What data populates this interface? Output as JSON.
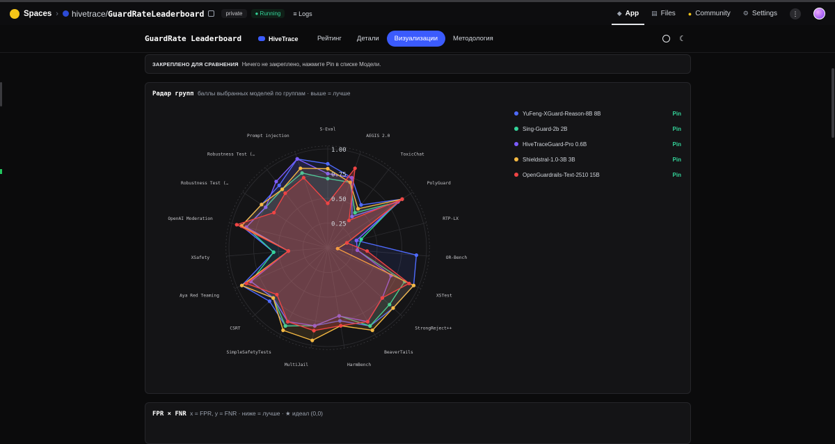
{
  "topbar": {
    "spaces_label": "Spaces",
    "org": "hivetrace",
    "slash": "/",
    "repo": "GuardRateLeaderboard",
    "visibility": "private",
    "status": "● Running",
    "logs": "≡ Logs",
    "nav": [
      {
        "label": "App",
        "icon": "app-icon",
        "active": true
      },
      {
        "label": "Files",
        "icon": "files-icon",
        "active": false
      },
      {
        "label": "Community",
        "icon": "community-icon",
        "active": false
      },
      {
        "label": "Settings",
        "icon": "gear-icon",
        "active": false
      }
    ]
  },
  "subnav": {
    "title": "GuardRate Leaderboard",
    "brand": "HiveTrace",
    "tabs": [
      {
        "label": "Рейтинг",
        "active": false
      },
      {
        "label": "Детали",
        "active": false
      },
      {
        "label": "Визуализации",
        "active": true
      },
      {
        "label": "Методология",
        "active": false
      }
    ]
  },
  "pinned": {
    "label": "ЗАКРЕПЛЕНО ДЛЯ СРАВНЕНИЯ",
    "text": "Ничего не закреплено, нажмите Pin в списке Модели."
  },
  "radar_panel": {
    "title": "Радар групп",
    "subtitle": "баллы выбранных моделей по группам · выше = лучше"
  },
  "fpr_panel": {
    "title": "FPR × FNR",
    "subtitle": "x = FPR, y = FNR · ниже = лучше · ★ идеал (0,0)"
  },
  "legend": [
    {
      "name": "YuFeng-XGuard-Reason-8B 8B",
      "color": "#4f6bff",
      "pin": "Pin"
    },
    {
      "name": "Sing-Guard-2b 2B",
      "color": "#34d399",
      "pin": "Pin"
    },
    {
      "name": "HiveTraceGuard-Pro 0.6B",
      "color": "#7c5cff",
      "pin": "Pin"
    },
    {
      "name": "Shieldstral-1.0-3B 3B",
      "color": "#f5b942",
      "pin": "Pin"
    },
    {
      "name": "OpenGuardrails-Text-2510 15B",
      "color": "#ef4444",
      "pin": "Pin"
    }
  ],
  "chart_data": {
    "type": "radar",
    "axes": [
      "S-Eval",
      "AEGIS 2.0",
      "ToxicChat",
      "PolyGuard",
      "RTP-LX",
      "OR-Bench",
      "XSTest",
      "StrongReject++",
      "BeaverTails",
      "HarmBench",
      "MultiJail",
      "SimpleSafetyTests",
      "CSRT",
      "Aya Red Teaming",
      "XSafety",
      "OpenAI Moderation",
      "Robustness Test (…",
      "Robustness Test (…",
      "Prompt injection"
    ],
    "ticks": [
      "0.25",
      "0.50",
      "0.75",
      "1.00"
    ],
    "rlim": [
      0,
      1
    ],
    "grid": true,
    "series": [
      {
        "name": "YuFeng-XGuard-Reason-8B 8B",
        "values": [
          0.85,
          0.75,
          0.55,
          0.9,
          0.3,
          0.9,
          0.95,
          0.9,
          0.9,
          0.75,
          0.8,
          0.9,
          0.8,
          0.95,
          0.55,
          0.9,
          0.8,
          0.8,
          0.95
        ]
      },
      {
        "name": "Sing-Guard-2b 2B",
        "values": [
          0.7,
          0.7,
          0.45,
          0.85,
          0.35,
          0.3,
          0.85,
          0.85,
          0.9,
          0.7,
          0.8,
          0.9,
          0.75,
          0.85,
          0.55,
          0.85,
          0.75,
          0.75,
          0.8
        ]
      },
      {
        "name": "HiveTraceGuard-Pro 0.6B",
        "values": [
          0.75,
          0.75,
          0.4,
          0.85,
          0.3,
          0.3,
          0.7,
          0.75,
          0.85,
          0.7,
          0.8,
          0.85,
          0.75,
          0.85,
          0.4,
          0.85,
          0.75,
          0.85,
          0.95
        ]
      },
      {
        "name": "Shieldstral-1.0-3B 3B",
        "values": [
          0.8,
          0.7,
          0.5,
          0.9,
          0.2,
          0.1,
          0.95,
          0.9,
          0.95,
          0.8,
          0.95,
          0.95,
          0.75,
          0.95,
          0.4,
          0.9,
          0.8,
          0.75,
          0.85
        ]
      },
      {
        "name": "OpenGuardrails-Text-2510 15B",
        "values": [
          0.45,
          0.85,
          0.35,
          0.9,
          0.2,
          0.4,
          0.9,
          0.75,
          0.85,
          0.8,
          0.85,
          0.85,
          0.7,
          0.9,
          0.4,
          0.95,
          0.65,
          0.7,
          0.75
        ]
      }
    ]
  }
}
